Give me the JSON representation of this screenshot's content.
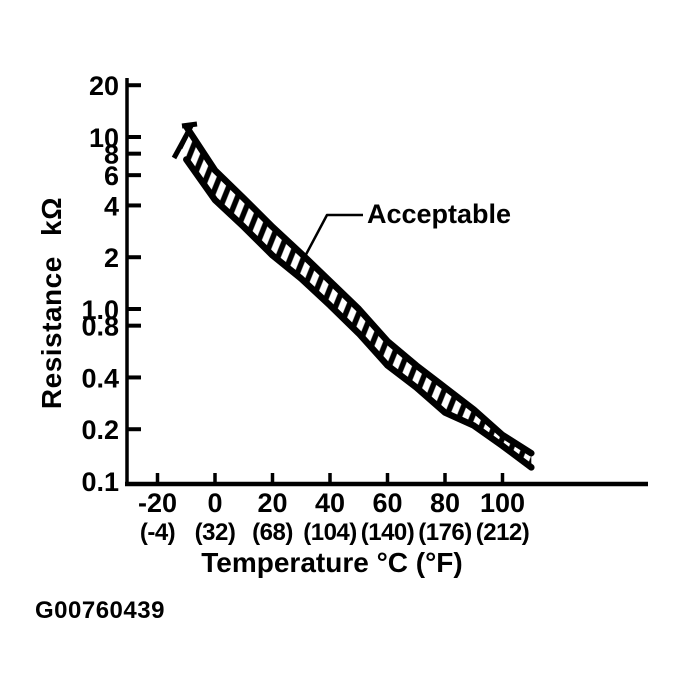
{
  "page": {
    "background": "#ffffff",
    "ink": "#000000"
  },
  "figure_code": "G00760439",
  "chart_data": {
    "type": "area",
    "subtype": "tolerance-band",
    "title": "",
    "xlabel": "Temperature °C (°F)",
    "ylabel": "Resistance kΩ",
    "x_unit": "°C (°F)",
    "y_unit": "kΩ",
    "x_scale": "linear",
    "y_scale": "log",
    "xlim": [
      -30,
      150
    ],
    "ylim": [
      0.1,
      30
    ],
    "grid": false,
    "legend": false,
    "band_style": "hatched",
    "annotation": {
      "label": "Acceptable",
      "points_to": "hatched-band"
    },
    "y_ticks": [
      {
        "label": "20",
        "value": 20
      },
      {
        "label": "10",
        "value": 10
      },
      {
        "label": "8",
        "value": 8
      },
      {
        "label": "6",
        "value": 6
      },
      {
        "label": "4",
        "value": 4
      },
      {
        "label": "2",
        "value": 2
      },
      {
        "label": "1.0",
        "value": 1
      },
      {
        "label": "0.8",
        "value": 0.8
      },
      {
        "label": "0.4",
        "value": 0.4
      },
      {
        "label": "0.2",
        "value": 0.2
      },
      {
        "label": "0.1",
        "value": 0.1
      }
    ],
    "x_ticks": [
      {
        "label_c": "-20",
        "label_f": "(-4)",
        "value": -20
      },
      {
        "label_c": "0",
        "label_f": "(32)",
        "value": 0
      },
      {
        "label_c": "20",
        "label_f": "(68)",
        "value": 20
      },
      {
        "label_c": "40",
        "label_f": "(104)",
        "value": 40
      },
      {
        "label_c": "60",
        "label_f": "(140)",
        "value": 60
      },
      {
        "label_c": "80",
        "label_f": "(176)",
        "value": 80
      },
      {
        "label_c": "100",
        "label_f": "(212)",
        "value": 100
      }
    ],
    "x": [
      -10,
      0,
      10,
      20,
      30,
      40,
      50,
      60,
      70,
      80,
      90,
      100,
      110
    ],
    "series": [
      {
        "name": "acceptable-upper-limit-kohm",
        "values": [
          11.5,
          6.4,
          4.4,
          3.0,
          2.1,
          1.45,
          1.0,
          0.65,
          0.47,
          0.35,
          0.26,
          0.185,
          0.145
        ]
      },
      {
        "name": "acceptable-lower-limit-kohm",
        "values": [
          7.4,
          4.3,
          3.0,
          2.05,
          1.5,
          1.05,
          0.72,
          0.47,
          0.35,
          0.25,
          0.21,
          0.16,
          0.12
        ]
      }
    ]
  }
}
